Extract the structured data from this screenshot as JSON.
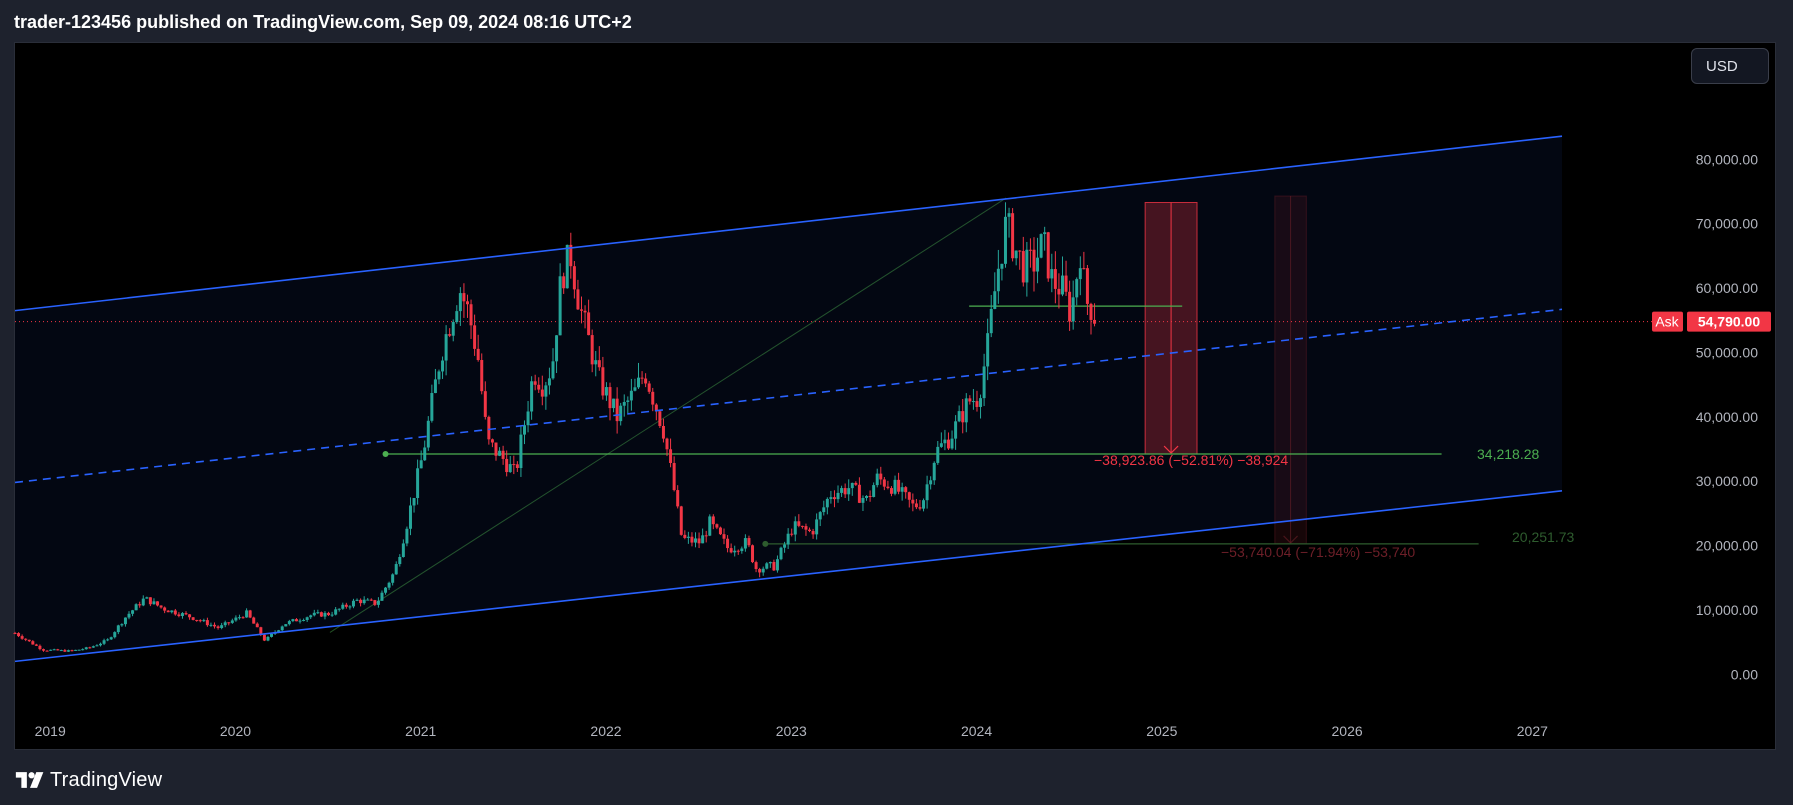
{
  "header": {
    "title": "trader-123456 published on TradingView.com, Sep 09, 2024 08:16 UTC+2"
  },
  "toolbar": {
    "currency_label": "USD"
  },
  "footer": {
    "brand": "TradingView",
    "brand_icon": "tradingview-logo-icon"
  },
  "colors": {
    "background": "#000000",
    "channel": "#2962ff",
    "candle_up": "#26a69a",
    "candle_down": "#f23645",
    "ask": "#f23645",
    "support_line": "#4caf50",
    "axis_text": "#b2b5be"
  },
  "ask_tag": {
    "label": "Ask",
    "value": "54,790.00"
  },
  "chart_data": {
    "type": "candlestick",
    "symbol_unit": "USD",
    "x_ticks": [
      "2019",
      "2020",
      "2021",
      "2022",
      "2023",
      "2024",
      "2025",
      "2026",
      "2027"
    ],
    "y_ticks": [
      "80,000.00",
      "70,000.00",
      "60,000.00",
      "50,000.00",
      "40,000.00",
      "30,000.00",
      "20,000.00",
      "10,000.00",
      "0.00"
    ],
    "xlim": [
      2018.85,
      2027.2
    ],
    "ylim": [
      -4000,
      90000
    ],
    "ask_price": 54790,
    "close_series": [
      [
        2018.85,
        6400
      ],
      [
        2019.0,
        3800
      ],
      [
        2019.15,
        3600
      ],
      [
        2019.25,
        4100
      ],
      [
        2019.35,
        5300
      ],
      [
        2019.45,
        9000
      ],
      [
        2019.55,
        11800
      ],
      [
        2019.65,
        10200
      ],
      [
        2019.8,
        8900
      ],
      [
        2019.95,
        7200
      ],
      [
        2020.1,
        9500
      ],
      [
        2020.2,
        5200
      ],
      [
        2020.3,
        7800
      ],
      [
        2020.45,
        9200
      ],
      [
        2020.55,
        9400
      ],
      [
        2020.7,
        11500
      ],
      [
        2020.8,
        11000
      ],
      [
        2020.9,
        16000
      ],
      [
        2020.97,
        24000
      ],
      [
        2021.05,
        34000
      ],
      [
        2021.15,
        50000
      ],
      [
        2021.25,
        60000
      ],
      [
        2021.3,
        56000
      ],
      [
        2021.35,
        49000
      ],
      [
        2021.4,
        36000
      ],
      [
        2021.5,
        33000
      ],
      [
        2021.55,
        31000
      ],
      [
        2021.65,
        47000
      ],
      [
        2021.7,
        45000
      ],
      [
        2021.75,
        48000
      ],
      [
        2021.8,
        62000
      ],
      [
        2021.85,
        65000
      ],
      [
        2021.9,
        57000
      ],
      [
        2022.0,
        46000
      ],
      [
        2022.1,
        40000
      ],
      [
        2022.2,
        44000
      ],
      [
        2022.25,
        47000
      ],
      [
        2022.35,
        38000
      ],
      [
        2022.4,
        30000
      ],
      [
        2022.45,
        21000
      ],
      [
        2022.55,
        20500
      ],
      [
        2022.6,
        23500
      ],
      [
        2022.7,
        19500
      ],
      [
        2022.8,
        20500
      ],
      [
        2022.85,
        16500
      ],
      [
        2022.95,
        16800
      ],
      [
        2023.05,
        23000
      ],
      [
        2023.15,
        22000
      ],
      [
        2023.25,
        28000
      ],
      [
        2023.35,
        29000
      ],
      [
        2023.45,
        27000
      ],
      [
        2023.5,
        30500
      ],
      [
        2023.6,
        29000
      ],
      [
        2023.7,
        26000
      ],
      [
        2023.75,
        27000
      ],
      [
        2023.82,
        34500
      ],
      [
        2023.9,
        37000
      ],
      [
        2024.0,
        42500
      ],
      [
        2024.05,
        43000
      ],
      [
        2024.1,
        51000
      ],
      [
        2024.15,
        62000
      ],
      [
        2024.2,
        70000
      ],
      [
        2024.25,
        66000
      ],
      [
        2024.3,
        63000
      ],
      [
        2024.35,
        64000
      ],
      [
        2024.4,
        67000
      ],
      [
        2024.45,
        61000
      ],
      [
        2024.5,
        60000
      ],
      [
        2024.55,
        56000
      ],
      [
        2024.6,
        66000
      ],
      [
        2024.63,
        58000
      ],
      [
        2024.66,
        57000
      ],
      [
        2024.69,
        54790
      ]
    ],
    "channel": {
      "upper": [
        [
          2018.85,
          56500
        ],
        [
          2027.2,
          83600
        ]
      ],
      "middle": [
        [
          2018.85,
          29800
        ],
        [
          2027.2,
          56700
        ]
      ],
      "lower": [
        [
          2018.85,
          2000
        ],
        [
          2027.2,
          28500
        ]
      ]
    },
    "trend_line": [
      [
        2020.55,
        6500
      ],
      [
        2024.2,
        74000
      ]
    ],
    "levels": [
      {
        "label": "34,218.28",
        "value": 34218.28,
        "from": 2020.85,
        "to": 2026.55,
        "color": "#4caf50"
      },
      {
        "label": "20,251.73",
        "value": 20251.73,
        "from": 2022.9,
        "to": 2026.75,
        "color": "#2e5c2e"
      }
    ],
    "resistance_line": {
      "value": 57200,
      "from": 2024.0,
      "to": 2025.15
    },
    "measures": [
      {
        "from": 2024.95,
        "to": 2025.23,
        "top": 73300,
        "bottom": 34218.28,
        "label": "−38,923.86 (−52.81%) −38,924",
        "color": "#f23645"
      },
      {
        "from": 2025.65,
        "to": 2025.82,
        "top": 74300,
        "bottom": 20251.73,
        "label": "−53,740.04 (−71.94%) −53,740",
        "color": "#6d1f28"
      }
    ]
  }
}
